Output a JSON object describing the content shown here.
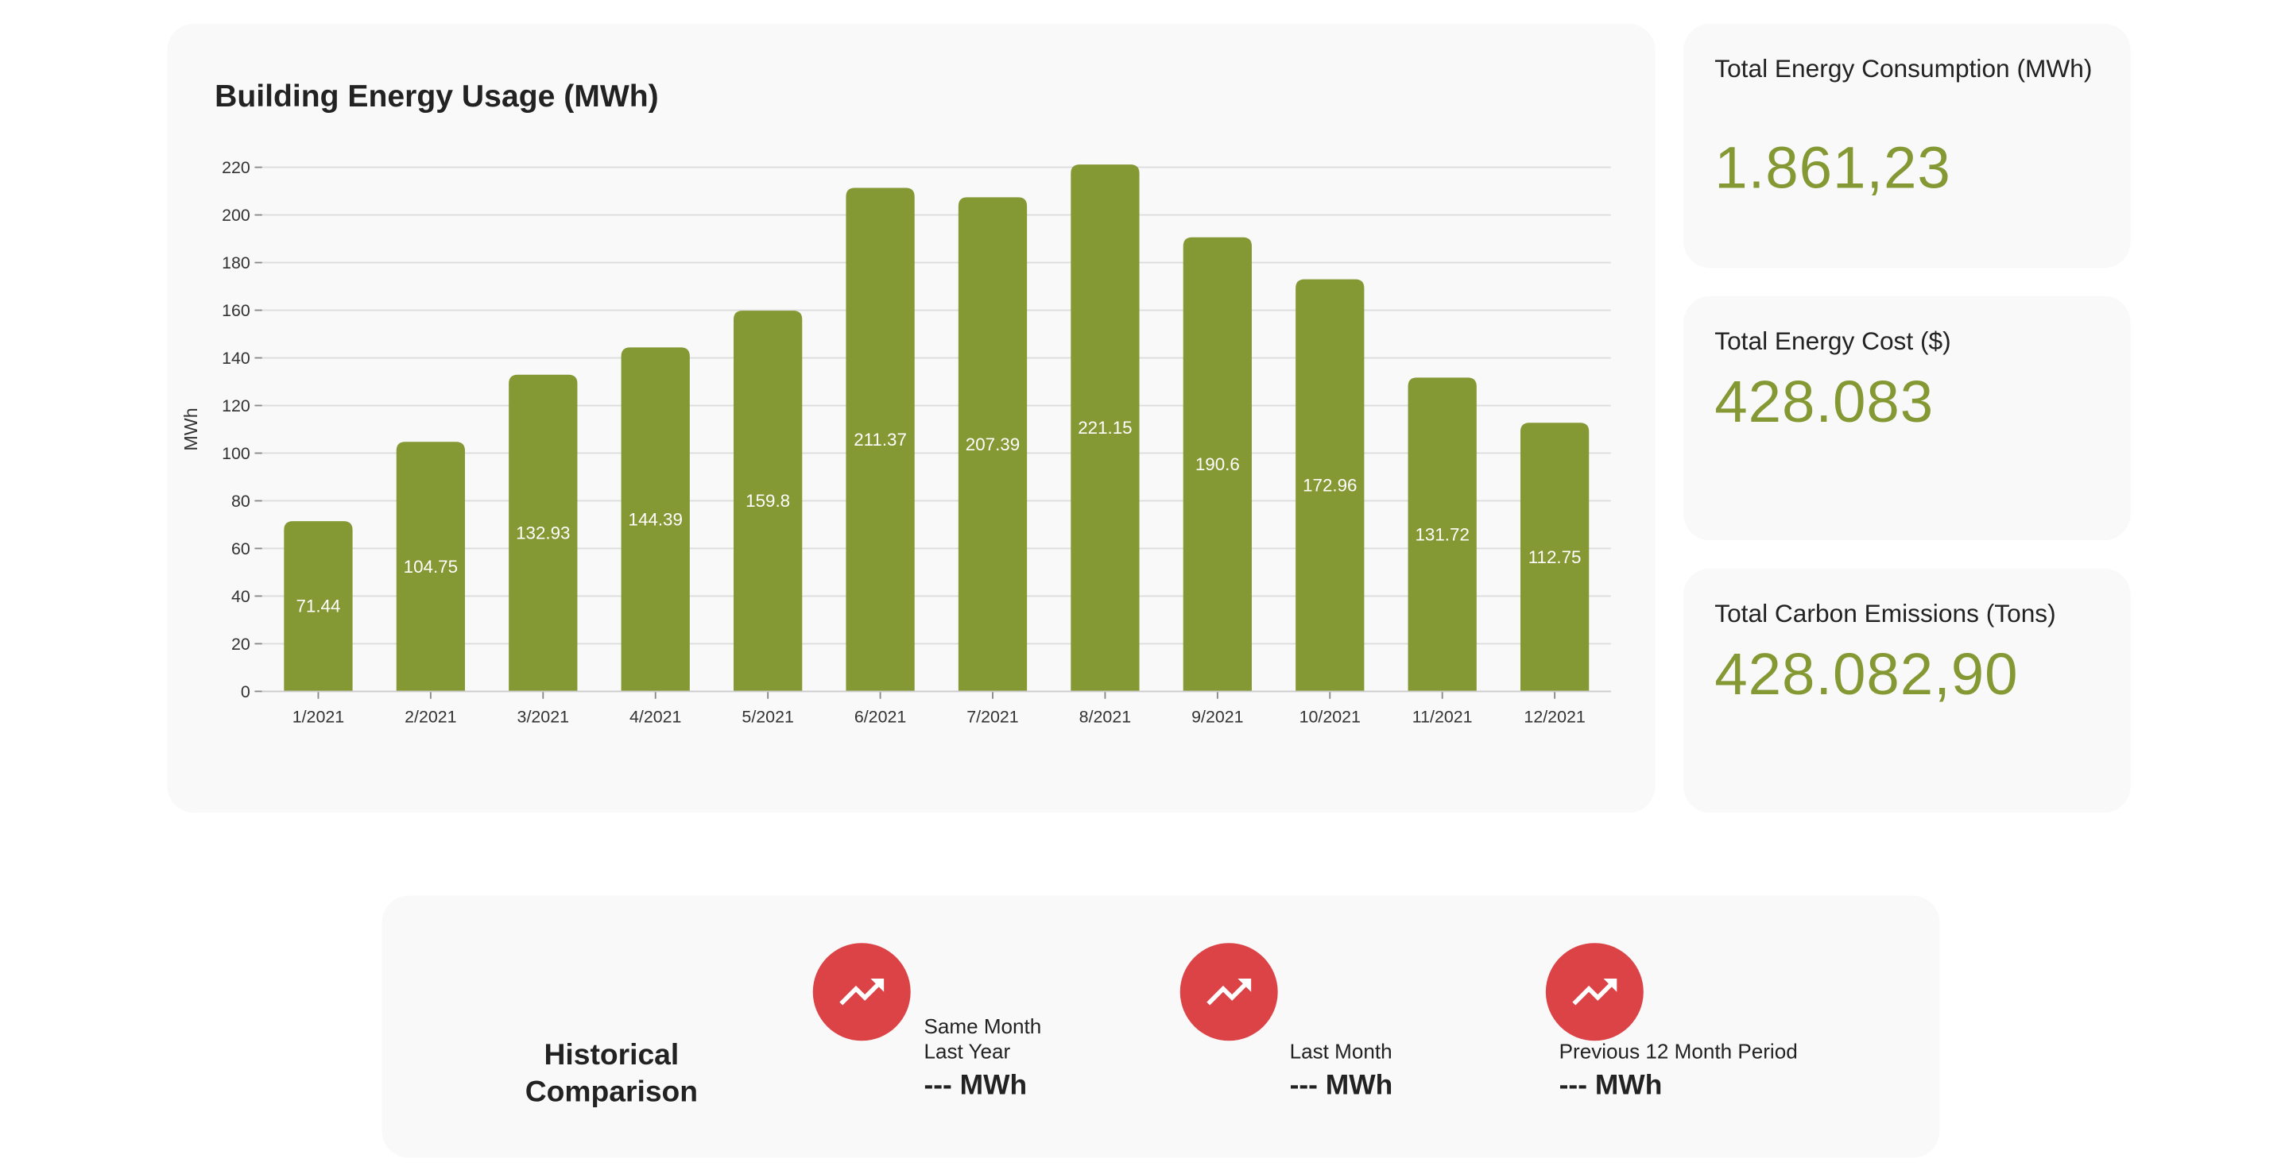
{
  "chart_data": {
    "type": "bar",
    "title": "Building Energy Usage (MWh)",
    "xlabel": "",
    "ylabel": "MWh",
    "ylim": [
      0,
      220
    ],
    "yticks": [
      0,
      20,
      40,
      60,
      80,
      100,
      120,
      140,
      160,
      180,
      200,
      220
    ],
    "grid": true,
    "bar_color": "#849833",
    "categories": [
      "1/2021",
      "2/2021",
      "3/2021",
      "4/2021",
      "5/2021",
      "6/2021",
      "7/2021",
      "8/2021",
      "9/2021",
      "10/2021",
      "11/2021",
      "12/2021"
    ],
    "values": [
      71.44,
      104.75,
      132.93,
      144.39,
      159.8,
      211.37,
      207.39,
      221.15,
      190.6,
      172.96,
      131.72,
      112.75
    ]
  },
  "kpis": {
    "consumption": {
      "label": "Total Energy Consumption (MWh)",
      "value": "1.861,23"
    },
    "cost": {
      "label": "Total Energy Cost ($)",
      "value": "428.083"
    },
    "emissions": {
      "label": "Total Carbon Emissions (Tons)",
      "value": "428.082,90"
    }
  },
  "historical": {
    "title_line1": "Historical",
    "title_line2": "Comparison",
    "items": [
      {
        "label_line1": "Same Month",
        "label_line2": "Last Year",
        "value": "--- MWh",
        "icon": "trending-up-icon"
      },
      {
        "label_line1": "",
        "label_line2": "Last Month",
        "value": "--- MWh",
        "icon": "trending-up-icon"
      },
      {
        "label_line1": "",
        "label_line2": "Previous 12 Month Period",
        "value": "--- MWh",
        "icon": "trending-up-icon"
      }
    ],
    "icon_color": "#dc4347"
  },
  "colors": {
    "accent": "#849833",
    "card_bg": "#f9f9f9"
  }
}
